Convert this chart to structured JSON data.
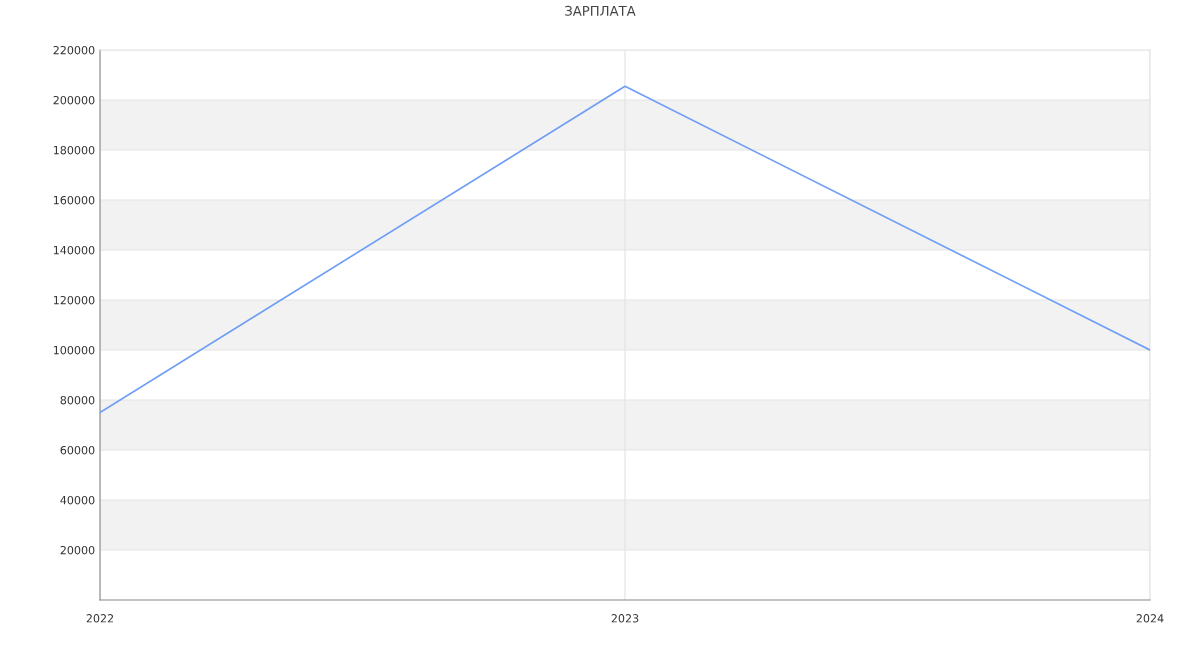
{
  "chart_data": {
    "type": "line",
    "title": "ЗАРПЛАТА",
    "x": [
      2022,
      2023,
      2024
    ],
    "series": [
      {
        "color": "#6f9ef5",
        "values": [
          75000,
          205500,
          100000
        ]
      }
    ],
    "xlim": [
      2022,
      2024
    ],
    "xticks": [
      2022,
      2023,
      2024
    ],
    "ylim": [
      0,
      220000
    ],
    "yticks": [
      20000,
      40000,
      60000,
      80000,
      100000,
      120000,
      140000,
      160000,
      180000,
      200000,
      220000
    ],
    "grid": true,
    "legend": false,
    "marker": "none",
    "line_style": "solid"
  }
}
